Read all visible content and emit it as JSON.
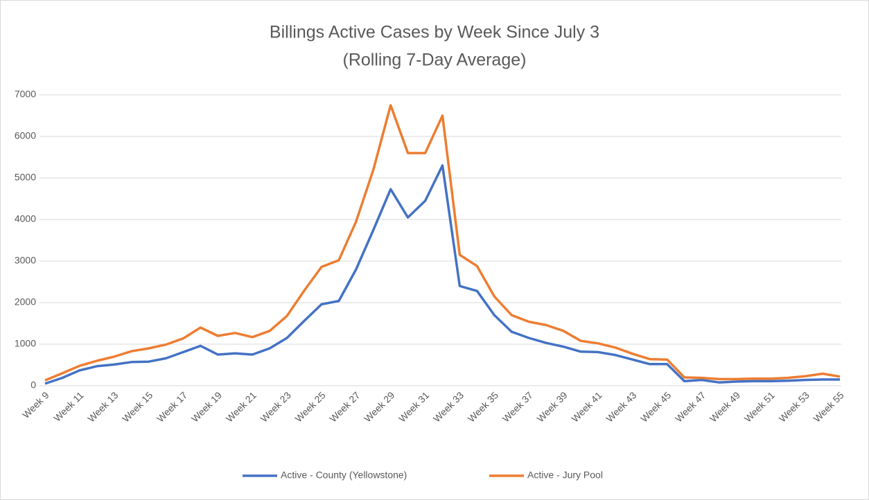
{
  "chart_data": {
    "type": "line",
    "title": "Billings Active Cases by Week Since July 3",
    "subtitle": "(Rolling 7-Day Average)",
    "categories": [
      "Week 9",
      null,
      "Week 11",
      null,
      "Week 13",
      null,
      "Week 15",
      null,
      "Week 17",
      null,
      "Week 19",
      null,
      "Week 21",
      null,
      "Week 23",
      null,
      "Week 25",
      null,
      "Week 27",
      null,
      "Week 29",
      null,
      "Week 31",
      null,
      "Week 33",
      null,
      "Week 35",
      null,
      "Week 37",
      null,
      "Week 39",
      null,
      "Week 41",
      null,
      "Week 43",
      null,
      "Week 45",
      null,
      "Week 47",
      null,
      "Week 49",
      null,
      "Week 51",
      null,
      "Week 53",
      null,
      "Week 55"
    ],
    "series": [
      {
        "name": "Active - County (Yellowstone)",
        "color": "#4472c4",
        "values": [
          50,
          190,
          370,
          470,
          510,
          570,
          580,
          660,
          810,
          960,
          750,
          780,
          750,
          900,
          1150,
          1560,
          1960,
          2040,
          2800,
          3750,
          4730,
          4050,
          4450,
          5300,
          2400,
          2280,
          1700,
          1300,
          1150,
          1030,
          940,
          820,
          810,
          740,
          630,
          520,
          520,
          110,
          140,
          80,
          100,
          110,
          110,
          120,
          140,
          150,
          150
        ]
      },
      {
        "name": "Active - Jury Pool",
        "color": "#ed7d31",
        "values": [
          130,
          300,
          480,
          600,
          700,
          830,
          900,
          990,
          1140,
          1400,
          1200,
          1270,
          1170,
          1320,
          1680,
          2290,
          2860,
          3020,
          3950,
          5200,
          6750,
          5600,
          5600,
          6500,
          3150,
          2880,
          2150,
          1700,
          1540,
          1460,
          1320,
          1080,
          1020,
          920,
          770,
          640,
          630,
          200,
          190,
          160,
          160,
          170,
          170,
          190,
          230,
          290,
          220
        ]
      }
    ],
    "ylim": [
      0,
      7000
    ],
    "yticks": [
      0,
      1000,
      2000,
      3000,
      4000,
      5000,
      6000,
      7000
    ],
    "grid": true,
    "legend": "bottom"
  }
}
